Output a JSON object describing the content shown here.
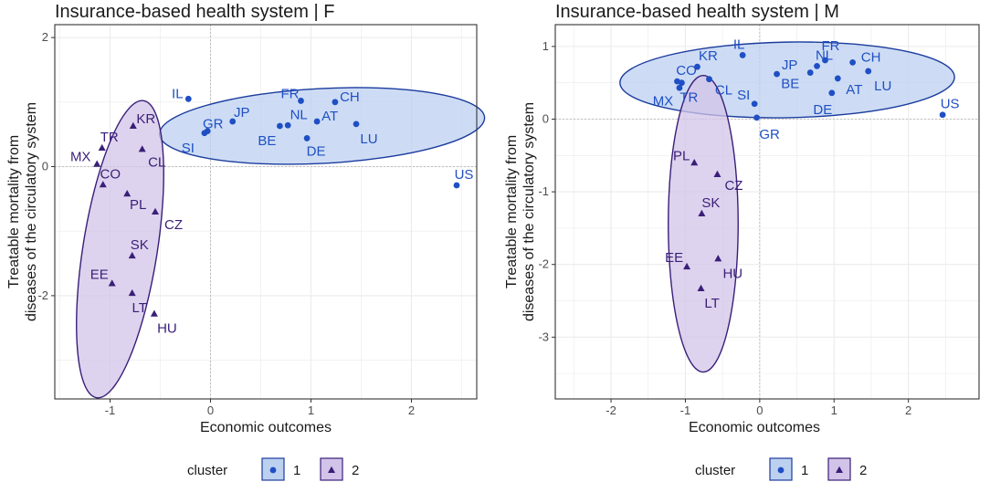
{
  "colors": {
    "c1": "#1f4fc4",
    "c1_fill": "#bcd0f0",
    "c1_stroke": "#1c3c9e",
    "c2": "#3a1e78",
    "c2_fill": "#d2c4e8",
    "c2_stroke": "#3a1e78",
    "grid": "#ebebeb",
    "zero_line": "#b3b3b3",
    "panel_border": "#333333"
  },
  "legend": {
    "title": "cluster",
    "items": [
      {
        "label": "1",
        "cluster": 1
      },
      {
        "label": "2",
        "cluster": 2
      }
    ]
  },
  "chart_data": [
    {
      "type": "scatter",
      "title": "Insurance-based health system | F",
      "xlabel": "Economic outcomes",
      "ylabel": [
        "Treatable mortality from",
        "diseases of the circulatory system"
      ],
      "xlim": [
        -1.55,
        2.65
      ],
      "ylim": [
        -3.6,
        2.2
      ],
      "xticks": [
        -1,
        0,
        1,
        2
      ],
      "yticks": [
        -2,
        0,
        2
      ],
      "grid": true,
      "points": [
        {
          "label": "IL",
          "x": -0.22,
          "y": 1.05,
          "cluster": 1
        },
        {
          "label": "GR",
          "x": -0.03,
          "y": 0.55,
          "cluster": 1
        },
        {
          "label": "SI",
          "x": -0.06,
          "y": 0.52,
          "cluster": 1
        },
        {
          "label": "JP",
          "x": 0.22,
          "y": 0.7,
          "cluster": 1
        },
        {
          "label": "FR",
          "x": 0.9,
          "y": 1.02,
          "cluster": 1
        },
        {
          "label": "CH",
          "x": 1.24,
          "y": 1.0,
          "cluster": 1
        },
        {
          "label": "NL",
          "x": 0.77,
          "y": 0.64,
          "cluster": 1
        },
        {
          "label": "BE",
          "x": 0.69,
          "y": 0.63,
          "cluster": 1
        },
        {
          "label": "AT",
          "x": 1.06,
          "y": 0.7,
          "cluster": 1
        },
        {
          "label": "DE",
          "x": 0.96,
          "y": 0.44,
          "cluster": 1
        },
        {
          "label": "LU",
          "x": 1.45,
          "y": 0.66,
          "cluster": 1
        },
        {
          "label": "US",
          "x": 2.45,
          "y": -0.29,
          "cluster": 1
        },
        {
          "label": "KR",
          "x": -0.77,
          "y": 0.63,
          "cluster": 2
        },
        {
          "label": "TR",
          "x": -1.08,
          "y": 0.29,
          "cluster": 2
        },
        {
          "label": "MX",
          "x": -1.13,
          "y": 0.04,
          "cluster": 2
        },
        {
          "label": "CL",
          "x": -0.68,
          "y": 0.27,
          "cluster": 2
        },
        {
          "label": "CO",
          "x": -1.07,
          "y": -0.28,
          "cluster": 2
        },
        {
          "label": "PL",
          "x": -0.83,
          "y": -0.42,
          "cluster": 2
        },
        {
          "label": "CZ",
          "x": -0.55,
          "y": -0.7,
          "cluster": 2
        },
        {
          "label": "SK",
          "x": -0.78,
          "y": -1.38,
          "cluster": 2
        },
        {
          "label": "EE",
          "x": -0.98,
          "y": -1.81,
          "cluster": 2
        },
        {
          "label": "LT",
          "x": -0.78,
          "y": -1.96,
          "cluster": 2
        },
        {
          "label": "HU",
          "x": -0.56,
          "y": -2.28,
          "cluster": 2
        }
      ],
      "ellipses": [
        {
          "cluster": 1,
          "cx": 1.11,
          "cy": 0.63,
          "rx": 1.62,
          "ry": 0.58,
          "rotation_deg": -3
        },
        {
          "cluster": 2,
          "cx": -0.9,
          "cy": -1.28,
          "rx": 0.37,
          "ry": 2.33,
          "rotation_deg": 9
        }
      ]
    },
    {
      "type": "scatter",
      "title": "Insurance-based health system | M",
      "xlabel": "Economic outcomes",
      "ylabel": [
        "Treatable mortality from",
        "diseases of the circulatory system"
      ],
      "xlim": [
        -2.75,
        2.95
      ],
      "ylim": [
        -3.85,
        1.3
      ],
      "xticks": [
        -2,
        -1,
        0,
        1,
        2
      ],
      "yticks": [
        -3,
        -2,
        -1,
        0,
        1
      ],
      "grid": true,
      "points": [
        {
          "label": "IL",
          "x": -0.23,
          "y": 0.88,
          "cluster": 1
        },
        {
          "label": "KR",
          "x": -0.84,
          "y": 0.72,
          "cluster": 1
        },
        {
          "label": "CO",
          "x": -1.11,
          "y": 0.52,
          "cluster": 1
        },
        {
          "label": "MX",
          "x": -1.08,
          "y": 0.43,
          "cluster": 1
        },
        {
          "label": "TR",
          "x": -1.05,
          "y": 0.5,
          "cluster": 1
        },
        {
          "label": "CL",
          "x": -0.68,
          "y": 0.55,
          "cluster": 1
        },
        {
          "label": "JP",
          "x": 0.23,
          "y": 0.62,
          "cluster": 1
        },
        {
          "label": "SI",
          "x": -0.07,
          "y": 0.21,
          "cluster": 1
        },
        {
          "label": "GR",
          "x": -0.04,
          "y": 0.02,
          "cluster": 1
        },
        {
          "label": "FR",
          "x": 0.88,
          "y": 0.81,
          "cluster": 1
        },
        {
          "label": "NL",
          "x": 0.77,
          "y": 0.73,
          "cluster": 1
        },
        {
          "label": "BE",
          "x": 0.68,
          "y": 0.64,
          "cluster": 1
        },
        {
          "label": "CH",
          "x": 1.25,
          "y": 0.78,
          "cluster": 1
        },
        {
          "label": "AT",
          "x": 1.05,
          "y": 0.56,
          "cluster": 1
        },
        {
          "label": "DE",
          "x": 0.97,
          "y": 0.36,
          "cluster": 1
        },
        {
          "label": "LU",
          "x": 1.46,
          "y": 0.66,
          "cluster": 1
        },
        {
          "label": "US",
          "x": 2.46,
          "y": 0.06,
          "cluster": 1
        },
        {
          "label": "PL",
          "x": -0.88,
          "y": -0.6,
          "cluster": 2
        },
        {
          "label": "CZ",
          "x": -0.57,
          "y": -0.76,
          "cluster": 2
        },
        {
          "label": "SK",
          "x": -0.78,
          "y": -1.3,
          "cluster": 2
        },
        {
          "label": "EE",
          "x": -0.98,
          "y": -2.03,
          "cluster": 2
        },
        {
          "label": "HU",
          "x": -0.56,
          "y": -1.92,
          "cluster": 2
        },
        {
          "label": "LT",
          "x": -0.79,
          "y": -2.33,
          "cluster": 2
        }
      ],
      "ellipses": [
        {
          "cluster": 1,
          "cx": 0.37,
          "cy": 0.54,
          "rx": 2.25,
          "ry": 0.52,
          "rotation_deg": -1
        },
        {
          "cluster": 2,
          "cx": -0.76,
          "cy": -1.44,
          "rx": 0.47,
          "ry": 2.04,
          "rotation_deg": 0
        }
      ]
    }
  ]
}
